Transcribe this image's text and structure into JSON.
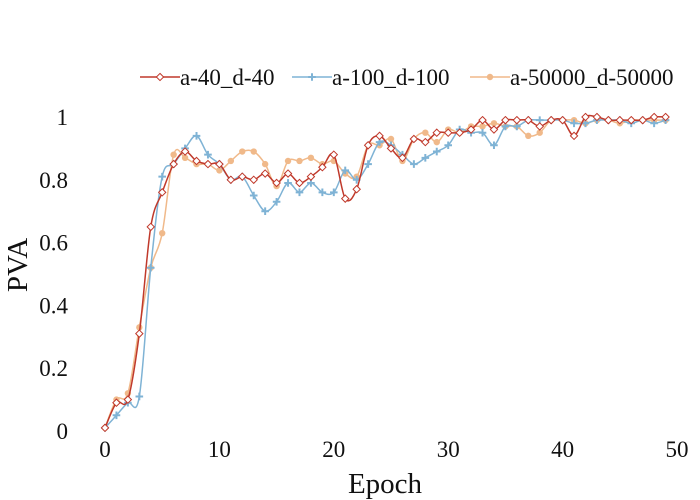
{
  "chart_data": {
    "type": "line",
    "xlabel": "Epoch",
    "ylabel": "PVA",
    "xlim": [
      0,
      50
    ],
    "ylim": [
      0,
      1.05
    ],
    "xticks": [
      0,
      10,
      20,
      30,
      40,
      50
    ],
    "xtick_labels": [
      "0",
      "10",
      "20",
      "30",
      "40",
      "50"
    ],
    "yticks": [
      0,
      0.2,
      0.4,
      0.6,
      0.8,
      1
    ],
    "ytick_labels": [
      "0",
      "0.2",
      "0.4",
      "0.6",
      "0.8",
      "1"
    ],
    "grid": false,
    "legend": "top",
    "series": [
      {
        "name": "a-40_d-40",
        "color": "#c0392b",
        "marker": "diamond-open",
        "x": [
          0,
          1,
          2,
          3,
          4,
          5,
          6,
          7,
          8,
          9,
          10,
          11,
          12,
          13,
          14,
          15,
          16,
          17,
          18,
          19,
          20,
          21,
          22,
          23,
          24,
          25,
          26,
          27,
          28,
          29,
          30,
          31,
          32,
          33,
          34,
          35,
          36,
          37,
          38,
          39,
          40,
          41,
          42,
          43,
          44,
          45,
          46,
          47,
          48,
          49
        ],
        "values": [
          0.01,
          0.09,
          0.1,
          0.31,
          0.65,
          0.76,
          0.85,
          0.89,
          0.86,
          0.85,
          0.85,
          0.8,
          0.81,
          0.8,
          0.82,
          0.79,
          0.82,
          0.79,
          0.81,
          0.84,
          0.88,
          0.74,
          0.77,
          0.91,
          0.94,
          0.9,
          0.87,
          0.93,
          0.92,
          0.95,
          0.95,
          0.95,
          0.96,
          0.99,
          0.96,
          0.99,
          0.99,
          0.99,
          0.97,
          0.99,
          0.99,
          0.94,
          1.0,
          1.0,
          0.99,
          0.99,
          0.99,
          0.99,
          1.0,
          1.0
        ]
      },
      {
        "name": "a-100_d-100",
        "color": "#7fb3d5",
        "marker": "plus",
        "x": [
          0,
          1,
          2,
          3,
          4,
          5,
          6,
          7,
          8,
          9,
          10,
          11,
          12,
          13,
          14,
          15,
          16,
          17,
          18,
          19,
          20,
          21,
          22,
          23,
          24,
          25,
          26,
          27,
          28,
          29,
          30,
          31,
          32,
          33,
          34,
          35,
          36,
          37,
          38,
          39,
          40,
          41,
          42,
          43,
          44,
          45,
          46,
          47,
          48,
          49
        ],
        "values": [
          0.01,
          0.05,
          0.09,
          0.11,
          0.52,
          0.81,
          0.85,
          0.9,
          0.94,
          0.88,
          0.85,
          0.8,
          0.81,
          0.75,
          0.7,
          0.73,
          0.79,
          0.76,
          0.79,
          0.76,
          0.76,
          0.83,
          0.8,
          0.85,
          0.92,
          0.91,
          0.88,
          0.85,
          0.87,
          0.89,
          0.91,
          0.96,
          0.95,
          0.95,
          0.91,
          0.97,
          0.97,
          0.99,
          0.99,
          0.99,
          0.99,
          0.98,
          0.98,
          0.99,
          0.99,
          0.99,
          0.98,
          0.99,
          0.98,
          0.99
        ]
      },
      {
        "name": "a-50000_d-50000",
        "color": "#f0b98a",
        "marker": "circle",
        "x": [
          0,
          1,
          2,
          3,
          4,
          5,
          6,
          7,
          8,
          9,
          10,
          11,
          12,
          13,
          14,
          15,
          16,
          17,
          18,
          19,
          20,
          21,
          22,
          23,
          24,
          25,
          26,
          27,
          28,
          29,
          30,
          31,
          32,
          33,
          34,
          35,
          36,
          37,
          38,
          39,
          40,
          41,
          42,
          43,
          44,
          45,
          46,
          47,
          48,
          49
        ],
        "values": [
          0.01,
          0.1,
          0.12,
          0.33,
          0.52,
          0.63,
          0.88,
          0.87,
          0.85,
          0.85,
          0.83,
          0.86,
          0.89,
          0.89,
          0.85,
          0.78,
          0.86,
          0.86,
          0.87,
          0.85,
          0.86,
          0.82,
          0.81,
          0.91,
          0.91,
          0.93,
          0.86,
          0.93,
          0.95,
          0.92,
          0.96,
          0.95,
          0.97,
          0.97,
          0.98,
          0.97,
          0.97,
          0.94,
          0.95,
          0.99,
          0.99,
          0.99,
          0.98,
          0.99,
          0.99,
          0.98,
          0.99,
          0.99,
          0.99,
          0.99
        ]
      }
    ]
  }
}
